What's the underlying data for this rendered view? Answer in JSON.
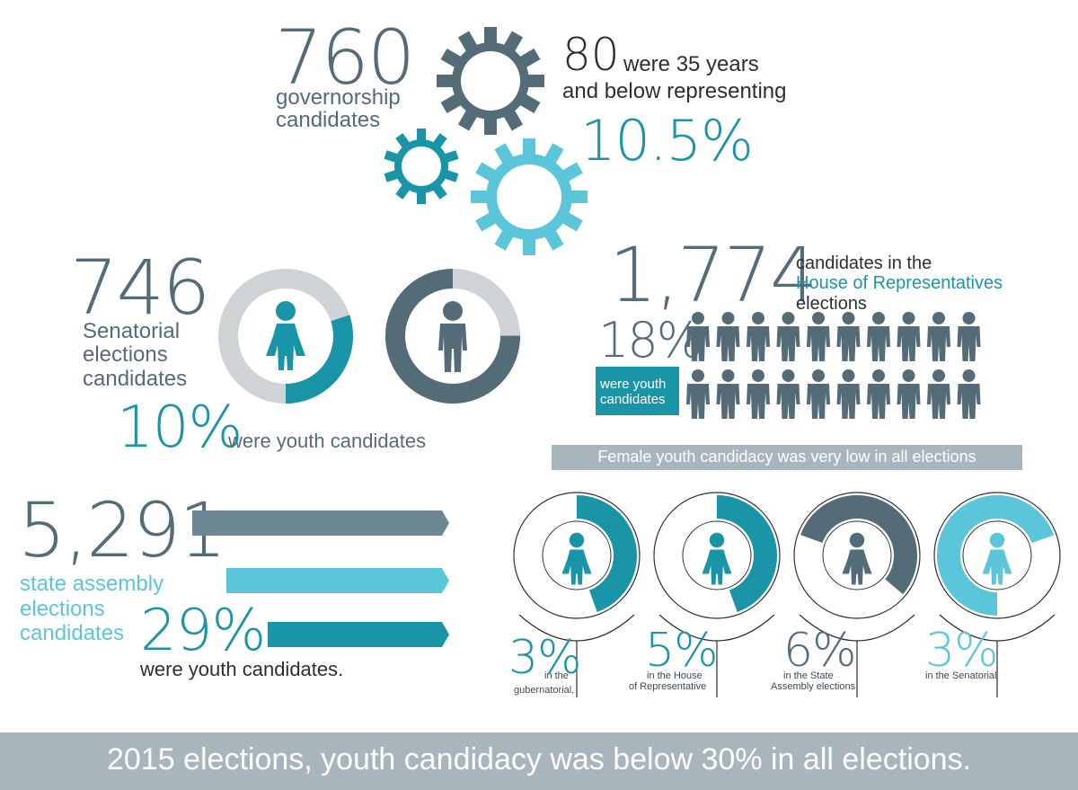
{
  "governorship": {
    "count": "760",
    "label_line1": "governorship",
    "label_line2": "candidates",
    "youth_count": "80",
    "youth_text_line1": "were 35 years",
    "youth_text_line2": "and below representing",
    "youth_percent": "10.5%"
  },
  "senatorial": {
    "count": "746",
    "label_line1": "Senatorial",
    "label_line2": "elections",
    "label_line3": "candidates",
    "percent": "10%",
    "percent_text": "were youth candidates",
    "youth_fraction": 0.1
  },
  "house": {
    "count": "1,774",
    "text_line1": "candidates in the",
    "text_highlight": "House of Representatives",
    "text_line3": "elections",
    "percent": "18%",
    "percent_text_line1": "were youth",
    "percent_text_line2": "candidates"
  },
  "assembly": {
    "count": "5,291",
    "label_line1": "state assembly",
    "label_line2": "elections",
    "label_line3": "candidates",
    "percent": "29%",
    "percent_text": "were youth candidates."
  },
  "female": {
    "banner": "Female youth candidacy was very low in all elections",
    "items": [
      {
        "percent": "3%",
        "line1": "in the",
        "line2": "gubernatorial,",
        "color": "#1a95a8"
      },
      {
        "percent": "5%",
        "line1": "in the House",
        "line2": "of Representative",
        "color": "#1a95a8"
      },
      {
        "percent": "6%",
        "line1": "in the State",
        "line2": "Assembly elections.",
        "color": "#546b78"
      },
      {
        "percent": "3%",
        "line1": "in the Senatorial",
        "line2": "",
        "color": "#5bc6d9"
      }
    ]
  },
  "footer": "2015 elections, youth candidacy was below 30% in all elections.",
  "colors": {
    "slate": "#546b78",
    "teal": "#1a95a8",
    "sky": "#5bc6d9",
    "gray": "#a9b5bd",
    "light_gray": "#cfd3d6"
  }
}
